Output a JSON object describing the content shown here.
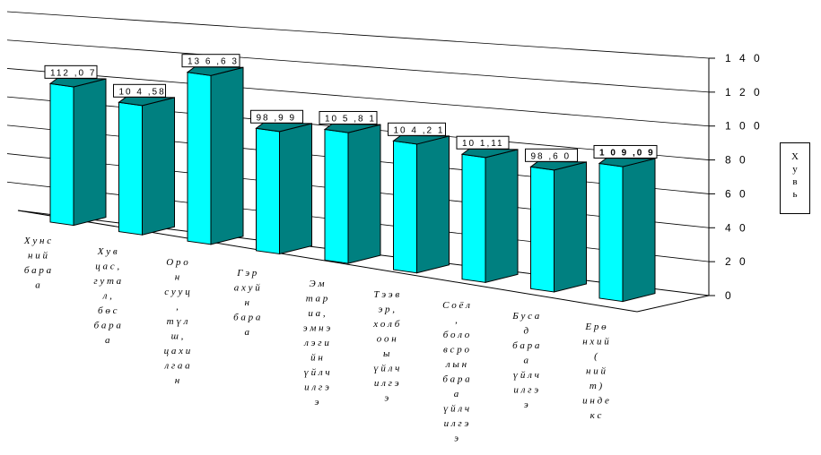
{
  "chart_data": {
    "type": "bar",
    "categories": [
      "Хунсний бараа",
      "Хувцас, гутал, бөс бараа",
      "Орон сууц, түлш, цахилгаан",
      "Гэр ахуйн бараа",
      "Эмтариа, эмнэлэгийн үйлчилгээ",
      "Тээвэр, холбооны үйлчилгээ",
      "Соёл, боловсролын бараа үйлчилгээ",
      "Бусад бараа үйлчилгээ",
      "Ерөнхий (нийт) индекс"
    ],
    "category_lines": [
      [
        "Х у н с",
        "н и й",
        "б а р а",
        "а"
      ],
      [
        "Х у в",
        "ц а с ,",
        "г у т а",
        "л ,",
        "б ө с",
        "б а р а",
        "а"
      ],
      [
        "О р о",
        "н",
        "с у у ц",
        ",",
        "т ү л",
        "ш ,",
        "ц а х и",
        "л г а а",
        "н"
      ],
      [
        "Г э р",
        "а х у й",
        "н",
        "б а р а",
        "а"
      ],
      [
        "Э м",
        "т а р",
        "и а ,",
        "э м н э",
        "л э г и",
        "й н",
        "ү й л ч",
        "и л г э",
        "э"
      ],
      [
        "Т э э в",
        "э р ,",
        "х о л б",
        "о о н",
        "ы",
        "ү й л ч",
        "и л г э",
        "э"
      ],
      [
        "С о ё л",
        ",",
        "б о л о",
        "в с р о",
        "л ы н",
        "б а р а",
        "а",
        "ү й л ч",
        "и л г э",
        "э"
      ],
      [
        "Б у с а",
        "д",
        "б а р а",
        "а",
        "ү й л ч",
        "и л г э",
        "э"
      ],
      [
        "Е р ө",
        "н х и й",
        "(",
        "н и й",
        "т )",
        "и н д е",
        "к с"
      ]
    ],
    "values": [
      112.07,
      104.58,
      136.63,
      98.99,
      105.81,
      104.21,
      101.11,
      98.6,
      109.09
    ],
    "value_labels": [
      "112 ,0 7",
      "10 4 ,58",
      "13 6 ,6 3",
      "98 ,9 9",
      "10 5 ,8 1",
      "10 4 ,2 1",
      "10 1,11",
      "98 ,6 0",
      "1 0 9 ,0 9"
    ],
    "yticks": [
      0,
      20,
      40,
      60,
      80,
      100,
      120,
      140
    ],
    "ytick_labels": [
      "0",
      "2 0",
      "4 0",
      "6 0",
      "8 0",
      "1 0 0",
      "1 2 0",
      "1 4 0"
    ],
    "ylim": [
      0,
      140
    ],
    "ylabel": "Хувь",
    "title": "",
    "xlabel": "",
    "grid": true,
    "bar_front_color": "#00ffff",
    "bar_side_color": "#008080",
    "gridline_color": "#000000"
  }
}
